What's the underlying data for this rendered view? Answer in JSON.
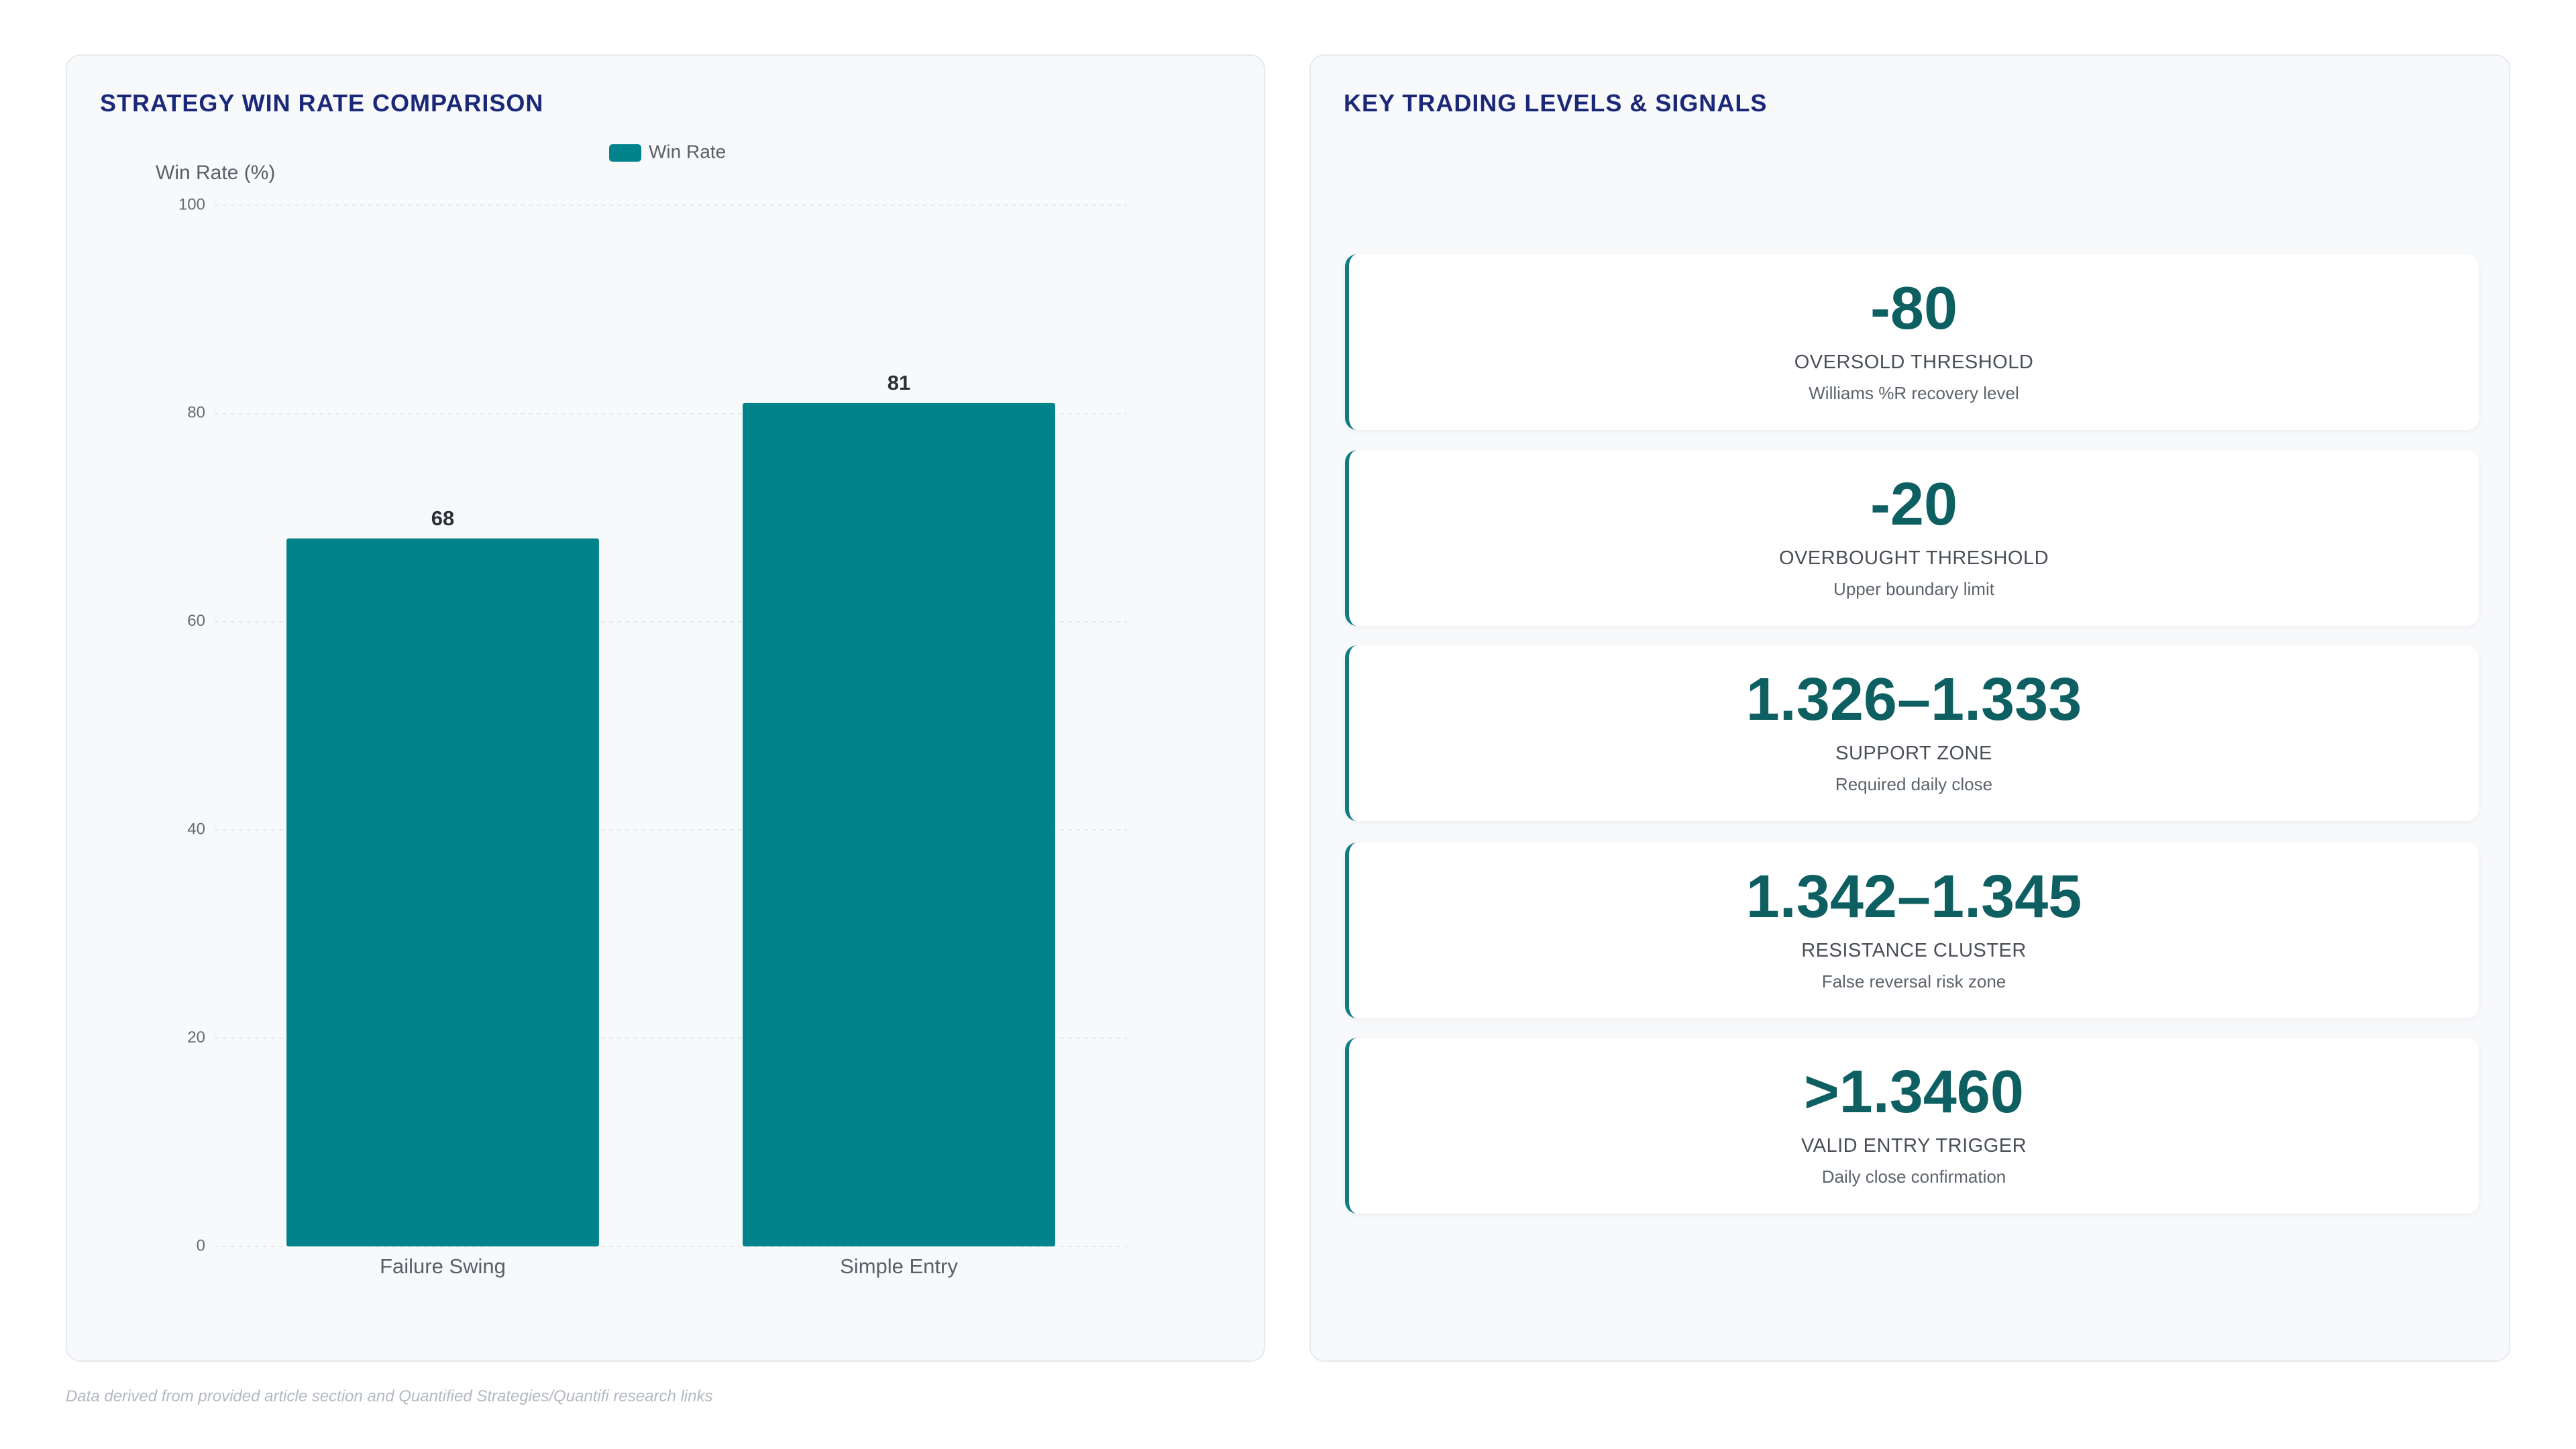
{
  "chart_data": {
    "type": "bar",
    "title": "STRATEGY WIN RATE COMPARISON",
    "ylabel": "Win Rate (%)",
    "categories": [
      "Failure Swing",
      "Simple Entry"
    ],
    "series": [
      {
        "name": "Win Rate",
        "color": "#00838a",
        "values": [
          68,
          81
        ]
      }
    ],
    "ylim": [
      0,
      100
    ],
    "yticks": [
      0,
      20,
      40,
      60,
      80,
      100
    ],
    "grid": true,
    "legend": "top"
  },
  "levels_panel": {
    "title": "KEY TRADING LEVELS & SIGNALS",
    "items": [
      {
        "value": "-80",
        "label": "OVERSOLD THRESHOLD",
        "note": "Williams %R recovery level"
      },
      {
        "value": "-20",
        "label": "OVERBOUGHT THRESHOLD",
        "note": "Upper boundary limit"
      },
      {
        "value": "1.326–1.333",
        "label": "SUPPORT ZONE",
        "note": "Required daily close"
      },
      {
        "value": "1.342–1.345",
        "label": "RESISTANCE CLUSTER",
        "note": "False reversal risk zone"
      },
      {
        "value": ">1.3460",
        "label": "VALID ENTRY TRIGGER",
        "note": "Daily close confirmation"
      }
    ]
  },
  "footnote": "Data derived from provided article section and Quantified Strategies/Quantifi research links"
}
